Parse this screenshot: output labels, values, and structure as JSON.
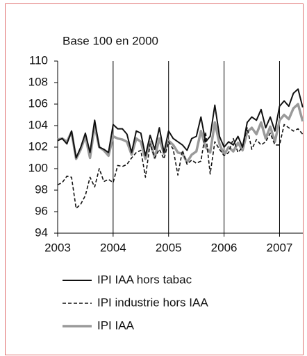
{
  "chart_data": {
    "type": "line",
    "subtitle": "Base 100 en 2000",
    "x": [
      2003,
      2003.083,
      2003.167,
      2003.25,
      2003.333,
      2003.417,
      2003.5,
      2003.583,
      2003.667,
      2003.75,
      2003.833,
      2003.917,
      2004,
      2004.083,
      2004.167,
      2004.25,
      2004.333,
      2004.417,
      2004.5,
      2004.583,
      2004.667,
      2004.75,
      2004.833,
      2004.917,
      2005,
      2005.083,
      2005.167,
      2005.25,
      2005.333,
      2005.417,
      2005.5,
      2005.583,
      2005.667,
      2005.75,
      2005.833,
      2005.917,
      2006,
      2006.083,
      2006.167,
      2006.25,
      2006.333,
      2006.417,
      2006.5,
      2006.583,
      2006.667,
      2006.75,
      2006.833,
      2006.917,
      2007,
      2007.083,
      2007.167,
      2007.25,
      2007.333,
      2007.417
    ],
    "series": [
      {
        "name": "IPI IAA hors tabac",
        "color": "#111111",
        "dash": false,
        "values": [
          102.6,
          102.8,
          102.3,
          103.5,
          101.0,
          102.0,
          103.3,
          101.5,
          104.5,
          102.0,
          101.8,
          101.5,
          104.1,
          103.7,
          103.7,
          103.2,
          101.5,
          103.5,
          103.3,
          101.2,
          103.1,
          101.8,
          103.8,
          101.5,
          103.5,
          102.8,
          102.5,
          102.2,
          101.7,
          102.8,
          103.0,
          104.8,
          102.5,
          103.0,
          105.9,
          103.0,
          102.0,
          102.5,
          102.2,
          103.0,
          102.0,
          104.3,
          104.8,
          104.5,
          105.5,
          103.8,
          104.8,
          103.5,
          105.8,
          106.3,
          105.8,
          107.0,
          107.4,
          105.7
        ]
      },
      {
        "name": "IPI industrie hors IAA",
        "color": "#111111",
        "dash": true,
        "values": [
          98.5,
          98.7,
          99.3,
          99.2,
          96.3,
          96.7,
          97.5,
          99.2,
          98.3,
          100.0,
          98.8,
          99.0,
          98.7,
          100.3,
          100.2,
          100.4,
          101.0,
          101.5,
          101.7,
          99.2,
          102.3,
          101.0,
          101.8,
          100.9,
          102.5,
          101.8,
          99.4,
          101.7,
          100.4,
          100.8,
          100.5,
          100.7,
          103.4,
          99.5,
          102.5,
          101.8,
          101.2,
          101.5,
          102.8,
          101.5,
          102.0,
          103.8,
          101.8,
          102.7,
          102.2,
          102.5,
          103.3,
          102.2,
          102.2,
          104.1,
          103.8,
          103.5,
          103.7,
          103.2
        ]
      },
      {
        "name": "IPI  IAA",
        "color": "#9a9a9a",
        "dash": false,
        "values": [
          102.7,
          102.8,
          102.5,
          103.4,
          100.9,
          101.8,
          103.0,
          101.0,
          104.0,
          102.0,
          101.7,
          101.2,
          103.0,
          102.8,
          102.7,
          102.5,
          101.3,
          102.8,
          102.5,
          100.9,
          102.5,
          101.0,
          102.8,
          101.4,
          102.6,
          102.2,
          101.5,
          101.4,
          100.6,
          101.3,
          101.6,
          103.5,
          102.0,
          101.5,
          104.3,
          102.3,
          101.3,
          102.0,
          101.6,
          102.4,
          101.7,
          103.4,
          103.8,
          103.2,
          104.3,
          102.8,
          103.9,
          102.5,
          104.5,
          105.0,
          104.6,
          105.6,
          106.0,
          104.4
        ]
      }
    ],
    "xlim": [
      2003,
      2007.42
    ],
    "xticks": [
      2003,
      2004,
      2005,
      2006,
      2007
    ],
    "ylim": [
      94,
      110
    ],
    "yticks": [
      94,
      96,
      98,
      100,
      102,
      104,
      106,
      108,
      110
    ],
    "xgrid": true
  }
}
